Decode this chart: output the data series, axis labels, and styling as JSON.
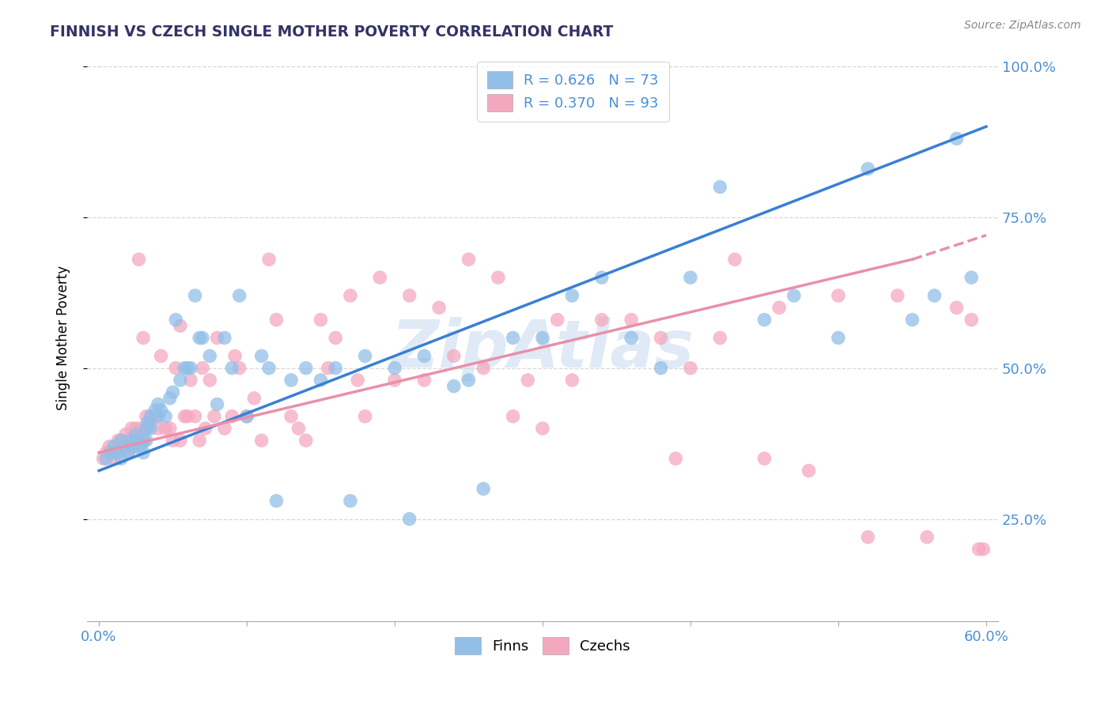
{
  "title": "FINNISH VS CZECH SINGLE MOTHER POVERTY CORRELATION CHART",
  "source": "Source: ZipAtlas.com",
  "ylabel": "Single Mother Poverty",
  "x_min": 0.0,
  "x_max": 0.6,
  "y_min": 0.08,
  "y_max": 1.02,
  "finn_color": "#92bfe8",
  "czech_color": "#f4a8bf",
  "finn_line_color": "#3a7fd5",
  "czech_line_color": "#e890ab",
  "finn_R": 0.626,
  "finn_N": 73,
  "czech_R": 0.37,
  "czech_N": 93,
  "watermark": "ZipAtlas",
  "background_color": "#ffffff",
  "grid_color": "#d8d8d8",
  "axis_color": "#4a90d9",
  "legend_text_color": "#4a90d9",
  "finn_scatter_x": [
    0.005,
    0.008,
    0.01,
    0.012,
    0.015,
    0.015,
    0.018,
    0.02,
    0.022,
    0.022,
    0.025,
    0.025,
    0.027,
    0.028,
    0.03,
    0.03,
    0.032,
    0.032,
    0.033,
    0.035,
    0.035,
    0.038,
    0.04,
    0.04,
    0.042,
    0.045,
    0.048,
    0.05,
    0.052,
    0.055,
    0.058,
    0.06,
    0.062,
    0.065,
    0.068,
    0.07,
    0.075,
    0.08,
    0.085,
    0.09,
    0.095,
    0.1,
    0.11,
    0.115,
    0.12,
    0.13,
    0.14,
    0.15,
    0.16,
    0.17,
    0.18,
    0.2,
    0.21,
    0.22,
    0.24,
    0.25,
    0.26,
    0.28,
    0.3,
    0.32,
    0.34,
    0.36,
    0.38,
    0.4,
    0.42,
    0.45,
    0.47,
    0.5,
    0.52,
    0.55,
    0.565,
    0.58,
    0.59
  ],
  "finn_scatter_y": [
    0.35,
    0.36,
    0.37,
    0.36,
    0.35,
    0.38,
    0.37,
    0.36,
    0.37,
    0.38,
    0.37,
    0.39,
    0.38,
    0.37,
    0.36,
    0.38,
    0.38,
    0.4,
    0.41,
    0.4,
    0.42,
    0.43,
    0.42,
    0.44,
    0.43,
    0.42,
    0.45,
    0.46,
    0.58,
    0.48,
    0.5,
    0.5,
    0.5,
    0.62,
    0.55,
    0.55,
    0.52,
    0.44,
    0.55,
    0.5,
    0.62,
    0.42,
    0.52,
    0.5,
    0.28,
    0.48,
    0.5,
    0.48,
    0.5,
    0.28,
    0.52,
    0.5,
    0.25,
    0.52,
    0.47,
    0.48,
    0.3,
    0.55,
    0.55,
    0.62,
    0.65,
    0.55,
    0.5,
    0.65,
    0.8,
    0.58,
    0.62,
    0.55,
    0.83,
    0.58,
    0.62,
    0.88,
    0.65
  ],
  "czech_scatter_x": [
    0.003,
    0.005,
    0.007,
    0.01,
    0.01,
    0.012,
    0.013,
    0.015,
    0.015,
    0.017,
    0.018,
    0.02,
    0.02,
    0.022,
    0.022,
    0.025,
    0.025,
    0.027,
    0.028,
    0.03,
    0.03,
    0.032,
    0.033,
    0.035,
    0.038,
    0.04,
    0.042,
    0.045,
    0.048,
    0.05,
    0.052,
    0.055,
    0.055,
    0.058,
    0.06,
    0.062,
    0.065,
    0.068,
    0.07,
    0.072,
    0.075,
    0.078,
    0.08,
    0.085,
    0.09,
    0.092,
    0.095,
    0.1,
    0.105,
    0.11,
    0.115,
    0.12,
    0.13,
    0.135,
    0.14,
    0.15,
    0.155,
    0.16,
    0.17,
    0.175,
    0.18,
    0.19,
    0.2,
    0.21,
    0.22,
    0.23,
    0.24,
    0.25,
    0.26,
    0.27,
    0.28,
    0.29,
    0.3,
    0.31,
    0.32,
    0.34,
    0.36,
    0.38,
    0.39,
    0.4,
    0.42,
    0.43,
    0.45,
    0.46,
    0.48,
    0.5,
    0.52,
    0.54,
    0.56,
    0.58,
    0.59,
    0.595,
    0.598
  ],
  "czech_scatter_y": [
    0.35,
    0.36,
    0.37,
    0.35,
    0.36,
    0.37,
    0.38,
    0.36,
    0.38,
    0.37,
    0.39,
    0.36,
    0.38,
    0.38,
    0.4,
    0.38,
    0.4,
    0.68,
    0.4,
    0.38,
    0.55,
    0.42,
    0.4,
    0.42,
    0.42,
    0.4,
    0.52,
    0.4,
    0.4,
    0.38,
    0.5,
    0.38,
    0.57,
    0.42,
    0.42,
    0.48,
    0.42,
    0.38,
    0.5,
    0.4,
    0.48,
    0.42,
    0.55,
    0.4,
    0.42,
    0.52,
    0.5,
    0.42,
    0.45,
    0.38,
    0.68,
    0.58,
    0.42,
    0.4,
    0.38,
    0.58,
    0.5,
    0.55,
    0.62,
    0.48,
    0.42,
    0.65,
    0.48,
    0.62,
    0.48,
    0.6,
    0.52,
    0.68,
    0.5,
    0.65,
    0.42,
    0.48,
    0.4,
    0.58,
    0.48,
    0.58,
    0.58,
    0.55,
    0.35,
    0.5,
    0.55,
    0.68,
    0.35,
    0.6,
    0.33,
    0.62,
    0.22,
    0.62,
    0.22,
    0.6,
    0.58,
    0.2,
    0.2
  ]
}
